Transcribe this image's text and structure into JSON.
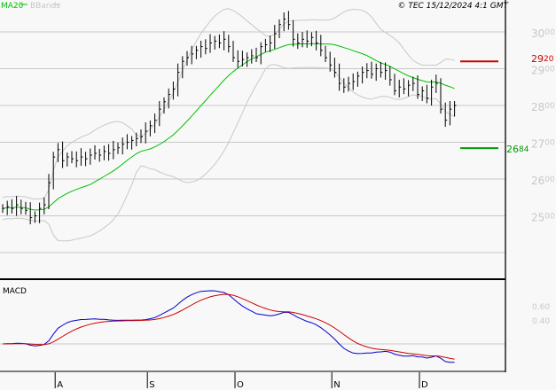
{
  "header": {
    "legend_ma": "MA20",
    "legend_bb": "BBands",
    "copyright": "© TEC 15/12/2024 4:1 GMT"
  },
  "colors": {
    "ma": "#00c000",
    "bbands": "#c8c8c8",
    "resistance": "#cc0000",
    "support": "#009900",
    "macd": "#0000cc",
    "signal": "#cc0000",
    "grid": "#c8c8c8",
    "axis_text": "#c8c8c8"
  },
  "chart_data": [
    {
      "type": "bar",
      "title": "",
      "ylim": [
        23.6,
        30.9
      ],
      "y_ticks": [
        {
          "main": "30",
          "dec": "00",
          "v": 30
        },
        {
          "main": "29",
          "dec": "00",
          "v": 29
        },
        {
          "main": "28",
          "dec": "00",
          "v": 28
        },
        {
          "main": "27",
          "dec": "00",
          "v": 27
        },
        {
          "main": "26",
          "dec": "00",
          "v": 26
        },
        {
          "main": "25",
          "dec": "00",
          "v": 25
        }
      ],
      "x_ticks": [
        "A",
        "S",
        "O",
        "N",
        "D"
      ],
      "x_tick_index": [
        11,
        31,
        50,
        71,
        90
      ],
      "levels": [
        {
          "name": "resistance",
          "main": "29",
          "dec": "20",
          "value": 29.2
        },
        {
          "name": "support",
          "main": "26",
          "dec": "84",
          "value": 26.84
        }
      ],
      "closes": [
        25.2,
        25.25,
        25.2,
        25.3,
        25.2,
        25.15,
        24.95,
        25.0,
        25.2,
        25.3,
        25.9,
        26.6,
        26.8,
        26.5,
        26.6,
        26.55,
        26.5,
        26.6,
        26.55,
        26.65,
        26.7,
        26.65,
        26.75,
        26.7,
        26.8,
        26.85,
        26.95,
        27.0,
        27.05,
        27.1,
        27.15,
        27.3,
        27.45,
        27.6,
        27.9,
        28.1,
        28.3,
        28.45,
        28.9,
        29.2,
        29.3,
        29.4,
        29.5,
        29.6,
        29.55,
        29.7,
        29.75,
        29.7,
        29.8,
        29.6,
        29.3,
        29.2,
        29.25,
        29.3,
        29.35,
        29.3,
        29.6,
        29.65,
        29.7,
        29.95,
        30.2,
        30.35,
        30.2,
        29.8,
        29.7,
        29.8,
        29.75,
        29.85,
        29.7,
        29.5,
        29.3,
        29.1,
        28.9,
        28.6,
        28.5,
        28.6,
        28.65,
        28.8,
        28.9,
        28.95,
        28.85,
        29.0,
        28.9,
        28.95,
        28.7,
        28.4,
        28.5,
        28.45,
        28.55,
        28.6,
        28.3,
        28.4,
        28.2,
        28.5,
        28.6,
        27.9,
        27.6,
        27.9,
        28.0
      ],
      "ma_period": 20
    },
    {
      "type": "line",
      "title": "MACD",
      "y_ticks": [
        {
          "label": "0.60",
          "v": 0.6
        },
        {
          "label": "0.40",
          "v": 0.4
        }
      ],
      "series": [
        {
          "color": "#0000cc"
        },
        {
          "color": "#cc0000"
        }
      ]
    }
  ]
}
